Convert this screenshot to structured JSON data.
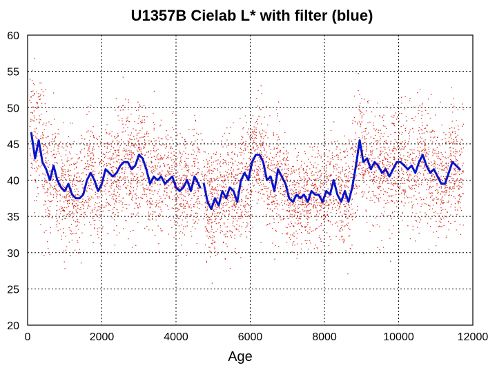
{
  "chart_data": {
    "type": "scatter",
    "title": "U1357B Cielab L* with filter (blue)",
    "xlabel": "Age",
    "ylabel": "",
    "xlim": [
      0,
      12000
    ],
    "ylim": [
      20,
      60
    ],
    "x_ticks": [
      "0",
      "2000",
      "4000",
      "6000",
      "8000",
      "10000",
      "12000"
    ],
    "y_ticks": [
      "20",
      "25",
      "30",
      "35",
      "40",
      "45",
      "50",
      "55",
      "60"
    ],
    "grid": true,
    "legend": "none",
    "colors": {
      "points": "#d42a1e",
      "filter_line": "#0a14c8"
    },
    "series": [
      {
        "type": "line",
        "description": "filtered",
        "x": [
          100,
          200,
          300,
          350,
          400,
          500,
          600,
          700,
          800,
          900,
          1000,
          1100,
          1200,
          1300,
          1400,
          1500,
          1600,
          1700,
          1800,
          1900,
          2000,
          2100,
          2200,
          2300,
          2400,
          2500,
          2600,
          2700,
          2800,
          2900,
          3000,
          3100,
          3200,
          3300,
          3400,
          3500,
          3600,
          3700,
          3800,
          3900,
          4000,
          4100,
          4200,
          4300,
          4400,
          4500,
          4600,
          4650,
          null,
          4750,
          4850,
          4950,
          5050,
          5150,
          5250,
          5350,
          5450,
          5550,
          5650,
          5750,
          5850,
          5950,
          6050,
          6150,
          6250,
          6350,
          6450,
          6550,
          6650,
          6750,
          6850,
          6950,
          7050,
          7150,
          7250,
          7350,
          7450,
          7550,
          7650,
          7750,
          7850,
          7950,
          8050,
          8150,
          8250,
          8350,
          8450,
          8550,
          8650,
          8750,
          8850,
          8950,
          9050,
          9150,
          9250,
          9350,
          9450,
          9550,
          9650,
          9750,
          9850,
          9950,
          10050,
          10150,
          10250,
          10350,
          10450,
          10550,
          10650,
          10750,
          10850,
          10950,
          11050,
          11150,
          11250,
          11350,
          11450,
          11550,
          11650
        ],
        "values": [
          46.5,
          43.0,
          45.5,
          44.0,
          42.5,
          41.5,
          40.0,
          42.0,
          40.0,
          39.0,
          38.5,
          39.5,
          38.0,
          37.5,
          37.5,
          38.0,
          40.0,
          41.0,
          40.0,
          38.5,
          39.5,
          41.5,
          41.0,
          40.5,
          41.0,
          42.0,
          42.5,
          42.5,
          41.5,
          42.0,
          43.5,
          43.0,
          41.5,
          39.5,
          40.5,
          40.0,
          40.5,
          39.5,
          40.0,
          40.5,
          39.0,
          38.5,
          39.0,
          40.0,
          38.5,
          40.5,
          39.5,
          39.0,
          null,
          39.5,
          37.0,
          36.0,
          37.5,
          36.5,
          38.5,
          37.5,
          39.0,
          38.5,
          37.0,
          40.0,
          41.0,
          40.0,
          42.5,
          43.5,
          43.5,
          42.5,
          40.0,
          40.5,
          38.5,
          41.5,
          40.5,
          39.5,
          37.5,
          37.0,
          38.0,
          37.5,
          38.0,
          37.0,
          38.5,
          38.0,
          38.0,
          37.0,
          38.5,
          38.0,
          40.0,
          38.0,
          37.0,
          38.5,
          37.0,
          39.0,
          42.0,
          45.5,
          42.5,
          43.0,
          41.5,
          42.5,
          42.0,
          41.0,
          41.5,
          40.5,
          41.5,
          42.5,
          42.5,
          42.0,
          41.5,
          42.0,
          41.0,
          42.5,
          43.5,
          42.0,
          41.0,
          41.5,
          40.5,
          39.5,
          39.5,
          41.0,
          42.5,
          42.0,
          41.5
        ]
      }
    ],
    "scatter_points": "approx. 6000 red dots, mean follows the blue filtered line with spread of about ±8 to ±12 units; x range 50–11750, y range 21–57"
  }
}
